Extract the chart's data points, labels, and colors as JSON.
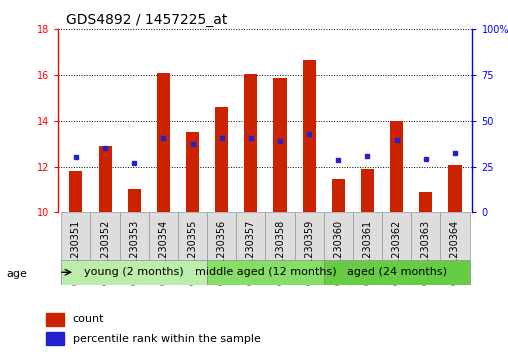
{
  "title": "GDS4892 / 1457225_at",
  "samples": [
    "GSM1230351",
    "GSM1230352",
    "GSM1230353",
    "GSM1230354",
    "GSM1230355",
    "GSM1230356",
    "GSM1230357",
    "GSM1230358",
    "GSM1230359",
    "GSM1230360",
    "GSM1230361",
    "GSM1230362",
    "GSM1230363",
    "GSM1230364"
  ],
  "counts": [
    11.8,
    12.9,
    11.0,
    16.1,
    13.5,
    14.6,
    16.05,
    15.85,
    16.65,
    11.45,
    11.9,
    14.0,
    10.9,
    12.05
  ],
  "percentile_ranks": [
    12.4,
    12.8,
    12.15,
    13.25,
    13.0,
    13.25,
    13.25,
    13.1,
    13.4,
    12.3,
    12.45,
    13.15,
    12.35,
    12.6
  ],
  "ymin": 10,
  "ymax": 18,
  "yticks": [
    10,
    12,
    14,
    16,
    18
  ],
  "y2min": 0,
  "y2max": 100,
  "y2ticks": [
    0,
    25,
    50,
    75,
    100
  ],
  "bar_color": "#CC2200",
  "dot_color": "#2222CC",
  "bar_width": 0.45,
  "group_colors": [
    "#BBEEAA",
    "#88DD66",
    "#66CC44"
  ],
  "groups": [
    {
      "label": "young (2 months)",
      "start": 0,
      "end": 4
    },
    {
      "label": "middle aged (12 months)",
      "start": 5,
      "end": 8
    },
    {
      "label": "aged (24 months)",
      "start": 9,
      "end": 13
    }
  ],
  "age_label": "age",
  "legend_count_label": "count",
  "legend_pct_label": "percentile rank within the sample",
  "title_fontsize": 10,
  "tick_fontsize": 7,
  "group_fontsize": 8,
  "legend_fontsize": 8
}
